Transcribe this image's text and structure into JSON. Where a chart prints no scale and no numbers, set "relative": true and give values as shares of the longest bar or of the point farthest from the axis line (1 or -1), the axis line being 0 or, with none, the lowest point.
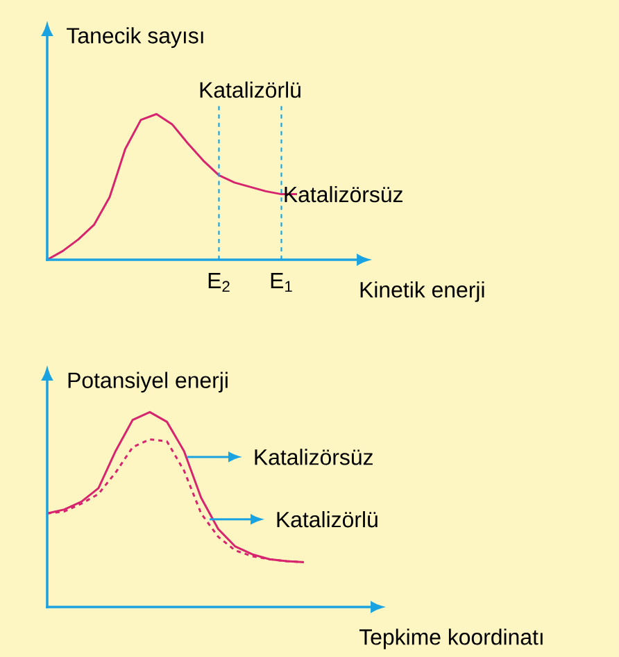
{
  "chart_data": [
    {
      "type": "line",
      "relative": true,
      "ylabel": "Tanecik sayısı",
      "xlabel": "Kinetik enerji",
      "categories": [
        null,
        null,
        null,
        null,
        null,
        null,
        null,
        null,
        null,
        null,
        null,
        "E$_{2}$",
        null,
        null,
        null,
        "E$_{1}$",
        null
      ],
      "marker": "none",
      "line_style": "solid",
      "series": [
        {
          "color": "#d6246e",
          "values": [
            0,
            0.06,
            0.14,
            0.24,
            0.43,
            0.76,
            0.96,
            1.0,
            0.93,
            0.8,
            0.68,
            0.58,
            0.53,
            0.5,
            0.47,
            0.45,
            0.45
          ]
        }
      ],
      "ref_lines": [
        {
          "axis": "x",
          "value": "E$_{2}$",
          "color": "#1aa3e0",
          "line_style": "dashed"
        },
        {
          "axis": "x",
          "value": "E$_{1}$",
          "color": "#1aa3e0",
          "line_style": "dashed"
        }
      ],
      "annotations": [
        "Katalizörlü",
        {
          "text": "Katalizörsüz",
          "x": "E$_{1}$",
          "y": 0.45
        }
      ]
    },
    {
      "type": "line",
      "relative": true,
      "ylabel": "Potansiyel enerji",
      "xlabel": "Tepkime koordinatı",
      "categories": [
        null,
        null,
        null,
        null,
        null,
        null,
        null,
        null,
        null,
        null,
        null,
        null,
        null,
        null,
        null,
        null
      ],
      "legend": "right",
      "marker": "none",
      "line_style": "solid",
      "series": [
        {
          "name": "Katalizörsüz",
          "color": "#d6246e",
          "values": [
            0.48,
            0.5,
            0.54,
            0.61,
            0.8,
            0.96,
            1.0,
            0.95,
            0.8,
            0.56,
            0.4,
            0.31,
            0.27,
            0.245,
            0.235,
            0.23
          ]
        },
        {
          "name": "Katalizörlü",
          "color": "#d6246e",
          "line_style": "dashed",
          "values": [
            0.48,
            0.49,
            0.53,
            0.58,
            0.69,
            0.82,
            0.86,
            0.85,
            0.7,
            0.48,
            0.36,
            0.29,
            0.26,
            0.245,
            0.235,
            0.23
          ]
        }
      ]
    }
  ]
}
